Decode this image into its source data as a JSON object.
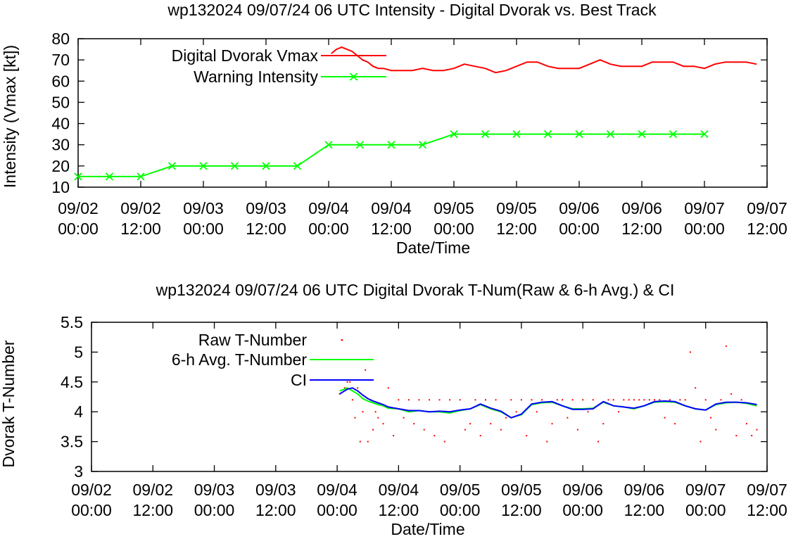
{
  "colors": {
    "dvorak_vmax": "#ff0000",
    "warning": "#00ff00",
    "raw_t": "#ff0000",
    "avg6h": "#00ff00",
    "ci": "#0000ff",
    "axis": "#000000"
  },
  "chart_data": [
    {
      "type": "line",
      "title": "wp132024 09/07/24  06 UTC Intensity - Digital Dvorak vs. Best Track",
      "xlabel": "Date/Time",
      "ylabel": "Intensity (Vmax [kt])",
      "ylim": [
        10,
        80
      ],
      "yticks": [
        "10",
        "20",
        "30",
        "40",
        "50",
        "60",
        "70",
        "80"
      ],
      "xlim_hours": [
        0,
        132
      ],
      "xticks": [
        {
          "date": "09/02",
          "time": "00:00"
        },
        {
          "date": "09/02",
          "time": "12:00"
        },
        {
          "date": "09/03",
          "time": "00:00"
        },
        {
          "date": "09/03",
          "time": "12:00"
        },
        {
          "date": "09/04",
          "time": "00:00"
        },
        {
          "date": "09/04",
          "time": "12:00"
        },
        {
          "date": "09/05",
          "time": "00:00"
        },
        {
          "date": "09/05",
          "time": "12:00"
        },
        {
          "date": "09/06",
          "time": "00:00"
        },
        {
          "date": "09/06",
          "time": "12:00"
        },
        {
          "date": "09/07",
          "time": "00:00"
        },
        {
          "date": "09/07",
          "time": "12:00"
        }
      ],
      "legend_position": "top-left",
      "series": [
        {
          "name": "Digital Dvorak Vmax",
          "style": "line",
          "x_hours": [
            48.5,
            49.5,
            50.5,
            51.5,
            52.5,
            53.5,
            54.5,
            55.5,
            56.5,
            57.5,
            58.5,
            60,
            62,
            64,
            66,
            68,
            70,
            72,
            74,
            76,
            78,
            80,
            82,
            84,
            86,
            88,
            90,
            92,
            94,
            96,
            98,
            100,
            102,
            104,
            106,
            108,
            110,
            112,
            114,
            116,
            118,
            120,
            122,
            124,
            126,
            128,
            130
          ],
          "values": [
            73,
            75,
            76,
            75,
            74,
            72,
            70,
            69,
            67,
            66,
            66,
            65,
            65,
            65,
            66,
            65,
            65,
            66,
            68,
            67,
            66,
            64,
            65,
            67,
            69,
            69,
            67,
            66,
            66,
            66,
            68,
            70,
            68,
            67,
            67,
            67,
            69,
            69,
            69,
            67,
            67,
            66,
            68,
            69,
            69,
            69,
            68
          ]
        },
        {
          "name": "Warning Intensity",
          "style": "line-x",
          "x_hours": [
            0,
            6,
            12,
            18,
            24,
            30,
            36,
            42,
            48,
            54,
            60,
            66,
            72,
            78,
            84,
            90,
            96,
            102,
            108,
            114,
            120
          ],
          "values": [
            15,
            15,
            15,
            20,
            20,
            20,
            20,
            20,
            30,
            30,
            30,
            30,
            35,
            35,
            35,
            35,
            35,
            35,
            35,
            35,
            35
          ]
        }
      ]
    },
    {
      "type": "line",
      "title": "wp132024 09/07/24  06 UTC Digital Dvorak T-Num(Raw & 6-h Avg.) & CI",
      "xlabel": "Date/Time",
      "ylabel": "Dvorak T-Number",
      "ylim": [
        3,
        5.5
      ],
      "yticks": [
        "3",
        "3.5",
        "4",
        "4.5",
        "5",
        "5.5"
      ],
      "xlim_hours": [
        0,
        132
      ],
      "xticks": [
        {
          "date": "09/02",
          "time": "00:00"
        },
        {
          "date": "09/02",
          "time": "12:00"
        },
        {
          "date": "09/03",
          "time": "00:00"
        },
        {
          "date": "09/03",
          "time": "12:00"
        },
        {
          "date": "09/04",
          "time": "00:00"
        },
        {
          "date": "09/04",
          "time": "12:00"
        },
        {
          "date": "09/05",
          "time": "00:00"
        },
        {
          "date": "09/05",
          "time": "12:00"
        },
        {
          "date": "09/06",
          "time": "00:00"
        },
        {
          "date": "09/06",
          "time": "12:00"
        },
        {
          "date": "09/07",
          "time": "00:00"
        },
        {
          "date": "09/07",
          "time": "12:00"
        }
      ],
      "legend_position": "top-left",
      "series": [
        {
          "name": "Raw T-Number",
          "style": "dots",
          "x_hours": [
            48.5,
            49,
            49.5,
            50,
            50.5,
            51,
            51.5,
            52,
            52.5,
            53,
            53.5,
            54,
            54.5,
            55,
            55.5,
            56,
            57,
            58,
            59,
            60,
            61,
            62,
            63,
            64,
            65,
            66,
            67,
            68,
            69,
            70,
            71,
            72,
            73,
            74,
            75,
            76,
            77,
            78,
            79,
            80,
            81,
            82,
            83,
            84,
            85,
            86,
            87,
            88,
            89,
            90,
            91,
            92,
            93,
            94,
            95,
            96,
            97,
            98,
            99,
            100,
            101,
            102,
            103,
            104,
            105,
            106,
            107,
            108,
            109,
            110,
            111,
            112,
            113,
            114,
            115,
            116,
            117,
            118,
            119,
            120,
            121,
            122,
            123,
            124,
            125,
            126,
            127,
            128,
            129,
            130
          ],
          "values": [
            4.3,
            5.2,
            4.4,
            4.5,
            4.5,
            4.2,
            3.9,
            4.4,
            3.5,
            4.0,
            4.7,
            3.5,
            4.2,
            3.7,
            4.0,
            3.9,
            3.8,
            4.4,
            3.6,
            4.2,
            3.9,
            4.2,
            3.8,
            4.2,
            3.7,
            4.2,
            3.6,
            4.2,
            3.5,
            4.2,
            4.0,
            4.2,
            3.7,
            3.8,
            4.2,
            3.6,
            4.2,
            3.8,
            4.2,
            3.7,
            3.9,
            4.2,
            4.0,
            4.2,
            3.6,
            4.2,
            4.0,
            4.2,
            3.5,
            3.8,
            4.2,
            4.2,
            3.9,
            4.2,
            3.7,
            4.2,
            4.0,
            4.2,
            3.5,
            3.8,
            4.2,
            4.2,
            4.0,
            4.2,
            4.2,
            4.2,
            4.2,
            4.2,
            4.2,
            4.2,
            4.2,
            3.9,
            4.2,
            3.8,
            4.2,
            4.2,
            5.0,
            4.4,
            3.5,
            4.2,
            3.9,
            3.7,
            4.2,
            5.1,
            4.3,
            3.6,
            4.2,
            3.8,
            3.6,
            3.7
          ]
        },
        {
          "name": "6-h Avg. T-Number",
          "style": "line",
          "x_hours": [
            48.5,
            50,
            51,
            52,
            53,
            54,
            55,
            56,
            57,
            58,
            60,
            62,
            64,
            66,
            68,
            70,
            72,
            74,
            76,
            78,
            80,
            82,
            84,
            86,
            88,
            90,
            92,
            94,
            96,
            98,
            100,
            102,
            104,
            106,
            108,
            110,
            112,
            114,
            116,
            118,
            120,
            122,
            124,
            126,
            128,
            130
          ],
          "values": [
            4.35,
            4.4,
            4.35,
            4.3,
            4.22,
            4.18,
            4.15,
            4.12,
            4.1,
            4.06,
            4.05,
            4.0,
            4.02,
            4.0,
            4.0,
            3.98,
            4.02,
            4.05,
            4.12,
            4.05,
            4.0,
            3.9,
            3.95,
            4.12,
            4.15,
            4.16,
            4.1,
            4.05,
            4.05,
            4.06,
            4.16,
            4.1,
            4.08,
            4.05,
            4.1,
            4.16,
            4.17,
            4.16,
            4.1,
            4.05,
            4.03,
            4.12,
            4.15,
            4.16,
            4.14,
            4.1
          ]
        },
        {
          "name": "CI",
          "style": "line",
          "x_hours": [
            48.5,
            50,
            51,
            52,
            53,
            54,
            55,
            56,
            57,
            58,
            60,
            62,
            64,
            66,
            68,
            70,
            72,
            74,
            76,
            78,
            80,
            82,
            84,
            86,
            88,
            90,
            92,
            94,
            96,
            98,
            100,
            102,
            104,
            106,
            108,
            110,
            112,
            114,
            116,
            118,
            120,
            122,
            124,
            126,
            128,
            130
          ],
          "values": [
            4.3,
            4.38,
            4.4,
            4.35,
            4.28,
            4.22,
            4.18,
            4.15,
            4.12,
            4.08,
            4.05,
            4.02,
            4.02,
            4.0,
            4.01,
            4.0,
            4.03,
            4.05,
            4.13,
            4.06,
            4.01,
            3.9,
            3.96,
            4.13,
            4.16,
            4.17,
            4.1,
            4.04,
            4.04,
            4.05,
            4.17,
            4.1,
            4.08,
            4.06,
            4.1,
            4.17,
            4.18,
            4.17,
            4.1,
            4.05,
            4.03,
            4.13,
            4.16,
            4.16,
            4.15,
            4.12
          ]
        }
      ]
    }
  ]
}
